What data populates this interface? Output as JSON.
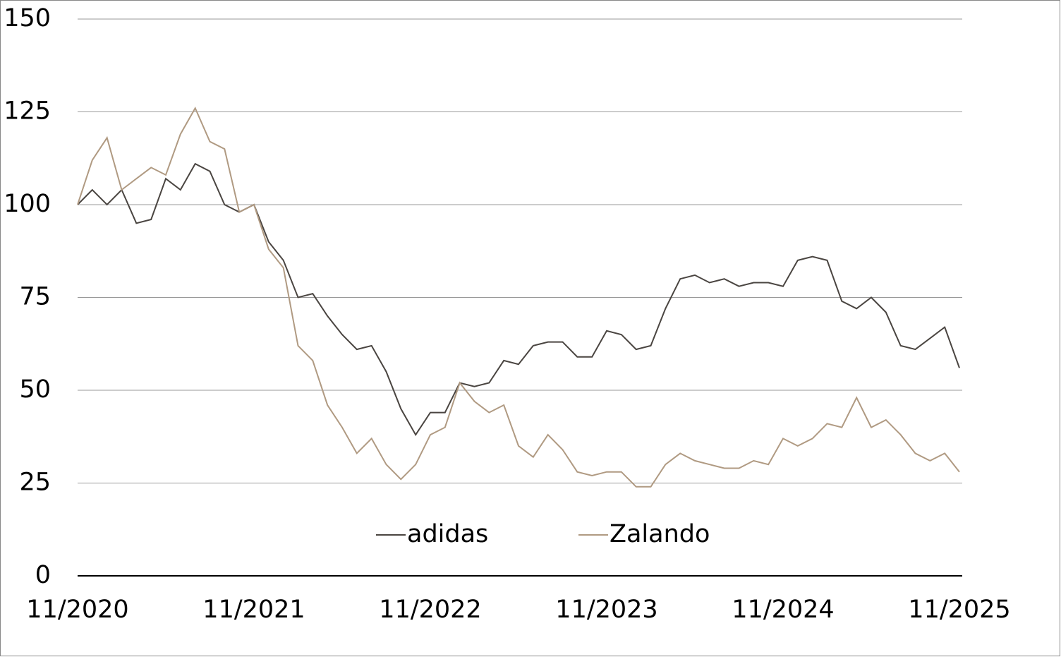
{
  "chart_data": {
    "type": "line",
    "categories": [
      "11/2020",
      null,
      null,
      null,
      null,
      null,
      null,
      null,
      null,
      null,
      null,
      null,
      "11/2021",
      null,
      null,
      null,
      null,
      null,
      null,
      null,
      null,
      null,
      null,
      null,
      "11/2022",
      null,
      null,
      null,
      null,
      null,
      null,
      null,
      null,
      null,
      null,
      null,
      "11/2023",
      null,
      null,
      null,
      null,
      null,
      null,
      null,
      null,
      null,
      null,
      null,
      "11/2024",
      null,
      null,
      null,
      null,
      null,
      null,
      null,
      null,
      null,
      null,
      null,
      "11/2025"
    ],
    "series": [
      {
        "name": "adidas",
        "color": "#4a4541",
        "values": [
          100,
          104,
          100,
          104,
          95,
          96,
          107,
          104,
          111,
          109,
          100,
          98,
          100,
          90,
          85,
          75,
          76,
          70,
          65,
          61,
          62,
          55,
          45,
          38,
          44,
          44,
          52,
          51,
          52,
          58,
          57,
          62,
          63,
          63,
          59,
          59,
          66,
          65,
          61,
          62,
          72,
          80,
          81,
          79,
          80,
          78,
          79,
          79,
          78,
          85,
          86,
          85,
          74,
          72,
          75,
          71,
          62,
          61,
          64,
          67,
          56
        ]
      },
      {
        "name": "Zalando",
        "color": "#b09a82",
        "values": [
          100,
          112,
          118,
          104,
          107,
          110,
          108,
          119,
          126,
          117,
          115,
          98,
          100,
          88,
          83,
          62,
          58,
          46,
          40,
          33,
          37,
          30,
          26,
          30,
          38,
          40,
          52,
          47,
          44,
          46,
          35,
          32,
          38,
          34,
          28,
          27,
          28,
          28,
          24,
          24,
          30,
          33,
          31,
          30,
          29,
          29,
          31,
          30,
          37,
          35,
          37,
          41,
          40,
          48,
          40,
          42,
          38,
          33,
          31,
          33,
          28
        ]
      }
    ],
    "ylim": [
      0,
      150
    ],
    "yticks": [
      0,
      25,
      50,
      75,
      100,
      125,
      150
    ],
    "grid": true,
    "legend": "bottom"
  }
}
